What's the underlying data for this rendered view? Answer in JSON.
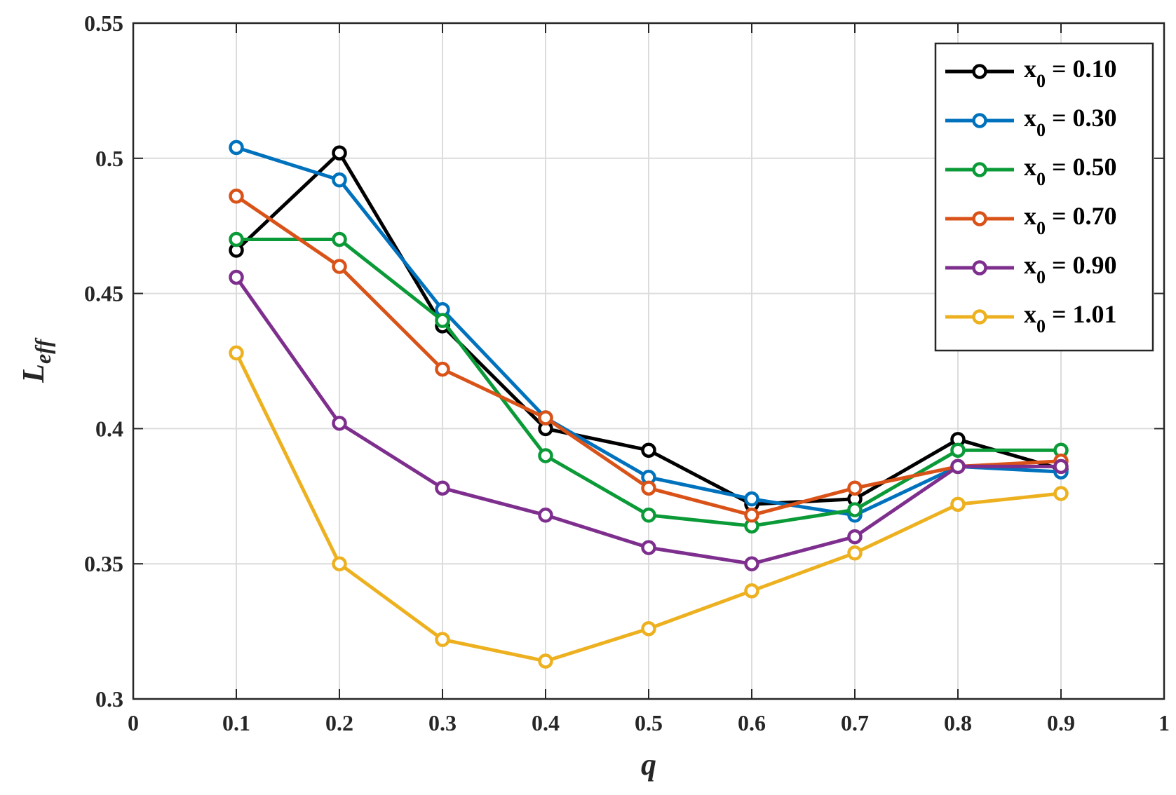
{
  "chart_data": {
    "type": "line",
    "xlabel": "q",
    "ylabel": {
      "base": "L",
      "sub": "eff"
    },
    "xlim": [
      0,
      1
    ],
    "ylim": [
      0.3,
      0.55
    ],
    "xticks": [
      0,
      0.1,
      0.2,
      0.3,
      0.4,
      0.5,
      0.6,
      0.7,
      0.8,
      0.9,
      1
    ],
    "xtick_labels": [
      "0",
      "0.1",
      "0.2",
      "0.3",
      "0.4",
      "0.5",
      "0.6",
      "0.7",
      "0.8",
      "0.9",
      "1"
    ],
    "yticks": [
      0.3,
      0.35,
      0.4,
      0.45,
      0.5,
      0.55
    ],
    "ytick_labels": [
      "0.3",
      "0.35",
      "0.4",
      "0.45",
      "0.5",
      "0.55"
    ],
    "grid": true,
    "legend_position": "top-right",
    "x": [
      0.1,
      0.2,
      0.3,
      0.4,
      0.5,
      0.6,
      0.7,
      0.8,
      0.9
    ],
    "series": [
      {
        "name": "x0 = 0.10",
        "label_base": "x",
        "label_sub": "0",
        "label_rest": " = 0.10",
        "color": "#000000",
        "values": [
          0.466,
          0.502,
          0.438,
          0.4,
          0.392,
          0.372,
          0.374,
          0.396,
          0.385
        ]
      },
      {
        "name": "x0 = 0.30",
        "label_base": "x",
        "label_sub": "0",
        "label_rest": " = 0.30",
        "color": "#0072BD",
        "values": [
          0.504,
          0.492,
          0.444,
          0.404,
          0.382,
          0.374,
          0.368,
          0.386,
          0.384
        ]
      },
      {
        "name": "x0 = 0.50",
        "label_base": "x",
        "label_sub": "0",
        "label_rest": " = 0.50",
        "color": "#0A9A37",
        "values": [
          0.47,
          0.47,
          0.44,
          0.39,
          0.368,
          0.364,
          0.37,
          0.392,
          0.392
        ]
      },
      {
        "name": "x0 = 0.70",
        "label_base": "x",
        "label_sub": "0",
        "label_rest": " = 0.70",
        "color": "#D95319",
        "values": [
          0.486,
          0.46,
          0.422,
          0.404,
          0.378,
          0.368,
          0.378,
          0.386,
          0.388
        ]
      },
      {
        "name": "x0 = 0.90",
        "label_base": "x",
        "label_sub": "0",
        "label_rest": " = 0.90",
        "color": "#7E2F8E",
        "values": [
          0.456,
          0.402,
          0.378,
          0.368,
          0.356,
          0.35,
          0.36,
          0.386,
          0.386
        ]
      },
      {
        "name": "x0 = 1.01",
        "label_base": "x",
        "label_sub": "0",
        "label_rest": " = 1.01",
        "color": "#EDB120",
        "values": [
          0.428,
          0.35,
          0.322,
          0.314,
          0.326,
          0.34,
          0.354,
          0.372,
          0.376
        ]
      }
    ]
  }
}
